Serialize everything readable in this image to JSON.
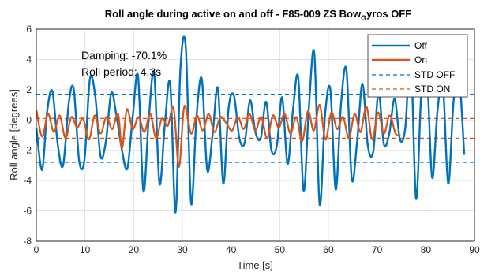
{
  "chart_data": {
    "type": "line",
    "title": {
      "main": "Roll angle during active on and off - F85-009 ZS Bow",
      "subscript": "G",
      "tail": "yros OFF"
    },
    "xlabel": "Time [s]",
    "ylabel": "Roll angle [degrees]",
    "xlim": [
      0,
      90
    ],
    "ylim": [
      -8,
      6
    ],
    "xticks": [
      "0",
      "10",
      "20",
      "30",
      "40",
      "50",
      "60",
      "70",
      "80",
      "90"
    ],
    "yticks": [
      "-8",
      "-6",
      "-4",
      "-2",
      "0",
      "2",
      "4",
      "6"
    ],
    "grid": true,
    "legend_position": "top-right",
    "annotations": [
      "Damping: -70.1%",
      "Roll period: 4.3s"
    ],
    "series": [
      {
        "name": "Off",
        "color": "#0072BD",
        "style": "solid",
        "x": [
          0,
          1.2,
          2.2,
          3.3,
          4.4,
          5.5,
          6.7,
          7.7,
          8.8,
          9.9,
          11,
          12.1,
          13.2,
          14.3,
          15.4,
          16.5,
          17.6,
          18.7,
          19.8,
          20.9,
          22,
          23.1,
          24.2,
          25.3,
          26.4,
          27.5,
          28.6,
          29.6,
          30.7,
          31.8,
          32.9,
          34,
          35.1,
          36.2,
          37.3,
          38.4,
          39.5,
          40.6,
          41.7,
          42.8,
          43.9,
          45,
          46.1,
          47.2,
          48.3,
          49.4,
          50.5,
          51.6,
          52.7,
          53.8,
          54.9,
          56,
          57.1,
          58.2,
          59.3,
          60.4,
          61.5,
          62.6,
          63.7,
          64.8,
          65.9,
          67,
          68.1,
          69.2,
          70.3,
          71.4,
          72.5,
          73.6,
          74.7,
          75.8,
          76.9,
          78,
          79.1,
          80.2,
          81.3,
          82.4,
          83.5,
          84.6,
          85.7,
          86.8,
          87.9
        ],
        "y": [
          -0.5,
          -3.3,
          0.5,
          1.9,
          -1.6,
          -3.0,
          1.2,
          2.0,
          -2.7,
          -2.6,
          2.7,
          1.6,
          -2.4,
          -1.4,
          1.8,
          0.2,
          -2.0,
          -3.2,
          0.2,
          2.9,
          -4.7,
          0.1,
          3.1,
          -4.2,
          -0.3,
          2.4,
          -6.1,
          3.4,
          4.8,
          -5.5,
          0.2,
          2.7,
          -3.3,
          -1.0,
          2.1,
          -4.2,
          0.8,
          1.6,
          -1.2,
          -1.5,
          1.3,
          -0.8,
          -1.2,
          1.2,
          -2.0,
          -1.7,
          1.5,
          -2.9,
          0.6,
          2.8,
          -4.7,
          0.9,
          4.4,
          -5.6,
          0.3,
          2.0,
          -4.6,
          1.1,
          3.3,
          -3.9,
          -1.4,
          2.4,
          -1.7,
          -2.1,
          1.8,
          -1.6,
          -0.9,
          1.4,
          -1.3,
          -0.5,
          4.3,
          -5.2,
          1.9,
          3.2,
          -3.8,
          0.6,
          2.4,
          -4.2,
          1.2,
          3.0,
          -2.3
        ]
      },
      {
        "name": "On",
        "color": "#D95319",
        "style": "solid",
        "x": [
          0,
          1.2,
          2.4,
          3.6,
          4.8,
          6,
          7.2,
          8.4,
          9.6,
          10.8,
          12,
          13.2,
          14.4,
          15.6,
          16.8,
          17.6,
          18.6,
          19.8,
          21,
          22.2,
          23.4,
          24.6,
          25.8,
          27,
          28.2,
          29.3,
          30.4,
          31.8,
          33,
          34.2,
          35.4,
          36.6,
          37.8,
          39,
          40.2,
          41.4,
          42.6,
          43.8,
          45,
          46.2,
          47.4,
          48.6,
          49.8,
          51,
          52.2,
          53.4,
          54.6,
          55.8,
          57,
          58.2,
          59.4,
          60.6,
          61.8,
          63,
          64.2,
          65.4,
          66.6,
          67.8,
          69,
          70.2,
          71.4,
          72.6,
          73.8,
          74.8
        ],
        "y": [
          0.7,
          -1.1,
          0.4,
          -0.8,
          0.3,
          -1.2,
          0.2,
          -0.5,
          0.1,
          -1.3,
          0.3,
          -0.9,
          0.2,
          -0.6,
          0.4,
          -1.9,
          0.7,
          -0.6,
          0.2,
          -0.8,
          0.4,
          -1.2,
          0.1,
          -0.4,
          0.8,
          -3.1,
          0.9,
          -0.9,
          0.3,
          -0.7,
          0.4,
          -0.8,
          0.2,
          -0.2,
          -0.7,
          0.2,
          -0.6,
          0.4,
          -0.7,
          0.2,
          -1.2,
          0.3,
          -0.5,
          0.4,
          -0.9,
          0.2,
          -1.4,
          0.6,
          -0.7,
          1.0,
          -1.3,
          0.5,
          -0.6,
          0.2,
          -1.2,
          0.4,
          -0.8,
          0.9,
          -1.3,
          0.5,
          -0.9,
          0.3,
          -0.9,
          -1.0
        ]
      },
      {
        "name": "STD OFF",
        "color": "#0072BD",
        "style": "dashed",
        "hlines": [
          1.7,
          -2.8
        ]
      },
      {
        "name": "STD ON",
        "color": "#D95319",
        "style": "dashed",
        "hlines": [
          0.1,
          -1.2
        ]
      }
    ]
  }
}
